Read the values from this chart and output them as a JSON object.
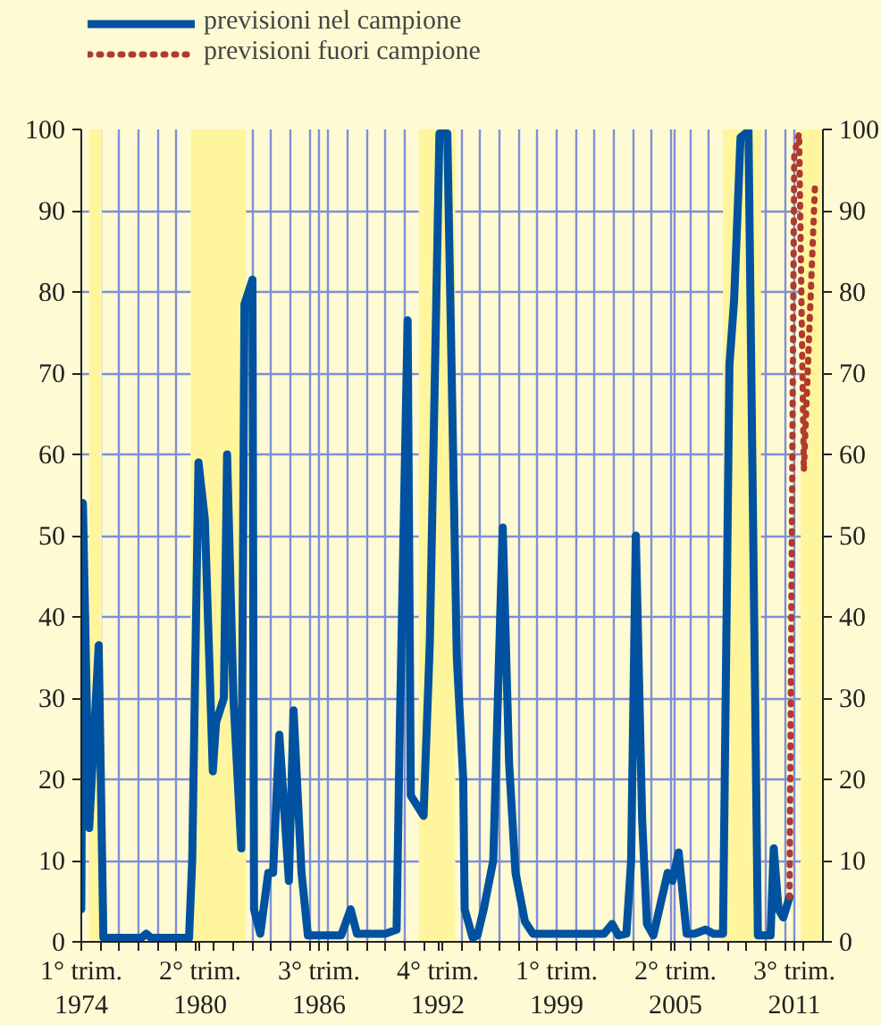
{
  "chart_data": {
    "type": "line",
    "xlim": [
      "1974-01",
      "2013-01"
    ],
    "xticks": [
      {
        "value": "1974-01",
        "label": "1° trim.\n1974"
      },
      {
        "value": "1975-01",
        "label": null
      },
      {
        "value": "1976-01",
        "label": null
      },
      {
        "value": "1977-01",
        "label": null
      },
      {
        "value": "1978-01",
        "label": null
      },
      {
        "value": "1979-01",
        "label": null
      },
      {
        "value": "1980-01",
        "label": null
      },
      {
        "value": "1980-04",
        "label": "2° trim.\n1980"
      },
      {
        "value": "1981-01",
        "label": null
      },
      {
        "value": "1982-01",
        "label": null
      },
      {
        "value": "1983-01",
        "label": null
      },
      {
        "value": "1984-01",
        "label": null
      },
      {
        "value": "1985-01",
        "label": null
      },
      {
        "value": "1986-01",
        "label": null
      },
      {
        "value": "1986-07",
        "label": "3° trim.\n1986"
      },
      {
        "value": "1987-01",
        "label": null
      },
      {
        "value": "1988-01",
        "label": null
      },
      {
        "value": "1989-01",
        "label": null
      },
      {
        "value": "1990-01",
        "label": null
      },
      {
        "value": "1991-01",
        "label": null
      },
      {
        "value": "1992-01",
        "label": null
      },
      {
        "value": "1992-10",
        "label": "4° trim.\n1992"
      },
      {
        "value": "1993-01",
        "label": null
      },
      {
        "value": "1994-01",
        "label": null
      },
      {
        "value": "1995-01",
        "label": null
      },
      {
        "value": "1996-01",
        "label": null
      },
      {
        "value": "1997-01",
        "label": null
      },
      {
        "value": "1998-01",
        "label": null
      },
      {
        "value": "1999-01",
        "label": "1° trim.\n1999"
      },
      {
        "value": "2000-01",
        "label": null
      },
      {
        "value": "2001-01",
        "label": null
      },
      {
        "value": "2002-01",
        "label": null
      },
      {
        "value": "2003-01",
        "label": null
      },
      {
        "value": "2004-01",
        "label": null
      },
      {
        "value": "2005-01",
        "label": null
      },
      {
        "value": "2005-04",
        "label": "2° trim.\n2005"
      },
      {
        "value": "2006-01",
        "label": null
      },
      {
        "value": "2007-01",
        "label": null
      },
      {
        "value": "2008-01",
        "label": null
      },
      {
        "value": "2009-01",
        "label": null
      },
      {
        "value": "2010-01",
        "label": null
      },
      {
        "value": "2011-01",
        "label": null
      },
      {
        "value": "2011-07",
        "label": "3° trim.\n2011"
      },
      {
        "value": "2012-01",
        "label": null
      }
    ],
    "ylim": [
      0,
      100
    ],
    "yticks": [
      0,
      10,
      20,
      30,
      40,
      50,
      60,
      70,
      80,
      90,
      100
    ],
    "y2lim": [
      0,
      100
    ],
    "y2ticks": [
      0,
      10,
      20,
      30,
      40,
      50,
      60,
      70,
      80,
      90,
      100
    ],
    "grid": true,
    "legend": "top left",
    "bands": [
      {
        "axis": "x",
        "from": "1974-06",
        "to": "1975-02",
        "label": null,
        "color": "#fff59d"
      },
      {
        "axis": "x",
        "from": "1979-10",
        "to": "1982-09",
        "label": null,
        "color": "#fff59d"
      },
      {
        "axis": "x",
        "from": "1991-10",
        "to": "1993-09",
        "label": null,
        "color": "#fff59d"
      },
      {
        "axis": "x",
        "from": "2007-10",
        "to": "2009-10",
        "label": null,
        "color": "#fff59d"
      },
      {
        "axis": "x",
        "from": "2011-11",
        "to": "2013-01",
        "label": null,
        "color": "#fff59d"
      }
    ],
    "series": [
      {
        "name": "previsioni nel campione",
        "color": "#0052a0",
        "line_style": "solid",
        "x": [
          "1974-01",
          "1974-02",
          "1974-06",
          "1974-12",
          "1975-03",
          "1977-03",
          "1977-06",
          "1977-09",
          "1979-09",
          "1979-11",
          "1980-03",
          "1980-07",
          "1980-12",
          "1981-02",
          "1981-07",
          "1981-09",
          "1982-01",
          "1982-06",
          "1982-08",
          "1983-01",
          "1983-02",
          "1983-06",
          "1983-11",
          "1984-02",
          "1984-06",
          "1984-12",
          "1985-03",
          "1985-08",
          "1985-12",
          "1987-09",
          "1988-03",
          "1988-07",
          "1989-05",
          "1990-01",
          "1990-08",
          "1990-10",
          "1991-03",
          "1991-05",
          "1992-01",
          "1992-05",
          "1992-11",
          "1993-04",
          "1993-10",
          "1994-02",
          "1994-03",
          "1994-08",
          "1994-11",
          "1995-03",
          "1995-09",
          "1996-03",
          "1996-07",
          "1996-11",
          "1997-05",
          "1997-10",
          "2001-07",
          "2001-12",
          "2002-04",
          "2002-09",
          "2002-12",
          "2003-03",
          "2003-07",
          "2003-10",
          "2004-02",
          "2004-11",
          "2005-02",
          "2005-06",
          "2005-11",
          "2006-04",
          "2006-11",
          "2007-04",
          "2007-10",
          "2008-02",
          "2008-05",
          "2008-09",
          "2009-02",
          "2009-08",
          "2010-04",
          "2010-06",
          "2010-09",
          "2010-12",
          "2011-04"
        ],
        "values": [
          4,
          54,
          14,
          36.5,
          0.5,
          0.5,
          1,
          0.5,
          0.5,
          10,
          59,
          52,
          21,
          27,
          30,
          60,
          30,
          11.5,
          78.5,
          81.5,
          4,
          1,
          8.5,
          8.5,
          25.5,
          7.5,
          28.5,
          8.5,
          0.8,
          0.8,
          4,
          1,
          1,
          1,
          1.5,
          26,
          76.5,
          18,
          15.5,
          37,
          99.5,
          99.5,
          35,
          20,
          4,
          0.5,
          0.8,
          4,
          10,
          51,
          22,
          8.5,
          2.5,
          1,
          1,
          2.2,
          0.8,
          1,
          10,
          50,
          15,
          2.2,
          0.8,
          8.5,
          7.5,
          11,
          1,
          1,
          1.5,
          1,
          1,
          71,
          79,
          99,
          99.8,
          0.8,
          0.8,
          11.5,
          4,
          3,
          5.5
        ]
      },
      {
        "name": "previsioni fuori campione",
        "color": "#b03a2e",
        "line_style": "dotted",
        "x": [
          "2011-04",
          "2011-07",
          "2011-10",
          "2012-01",
          "2012-08"
        ],
        "values": [
          5.5,
          97,
          99.5,
          58,
          93
        ]
      }
    ]
  }
}
